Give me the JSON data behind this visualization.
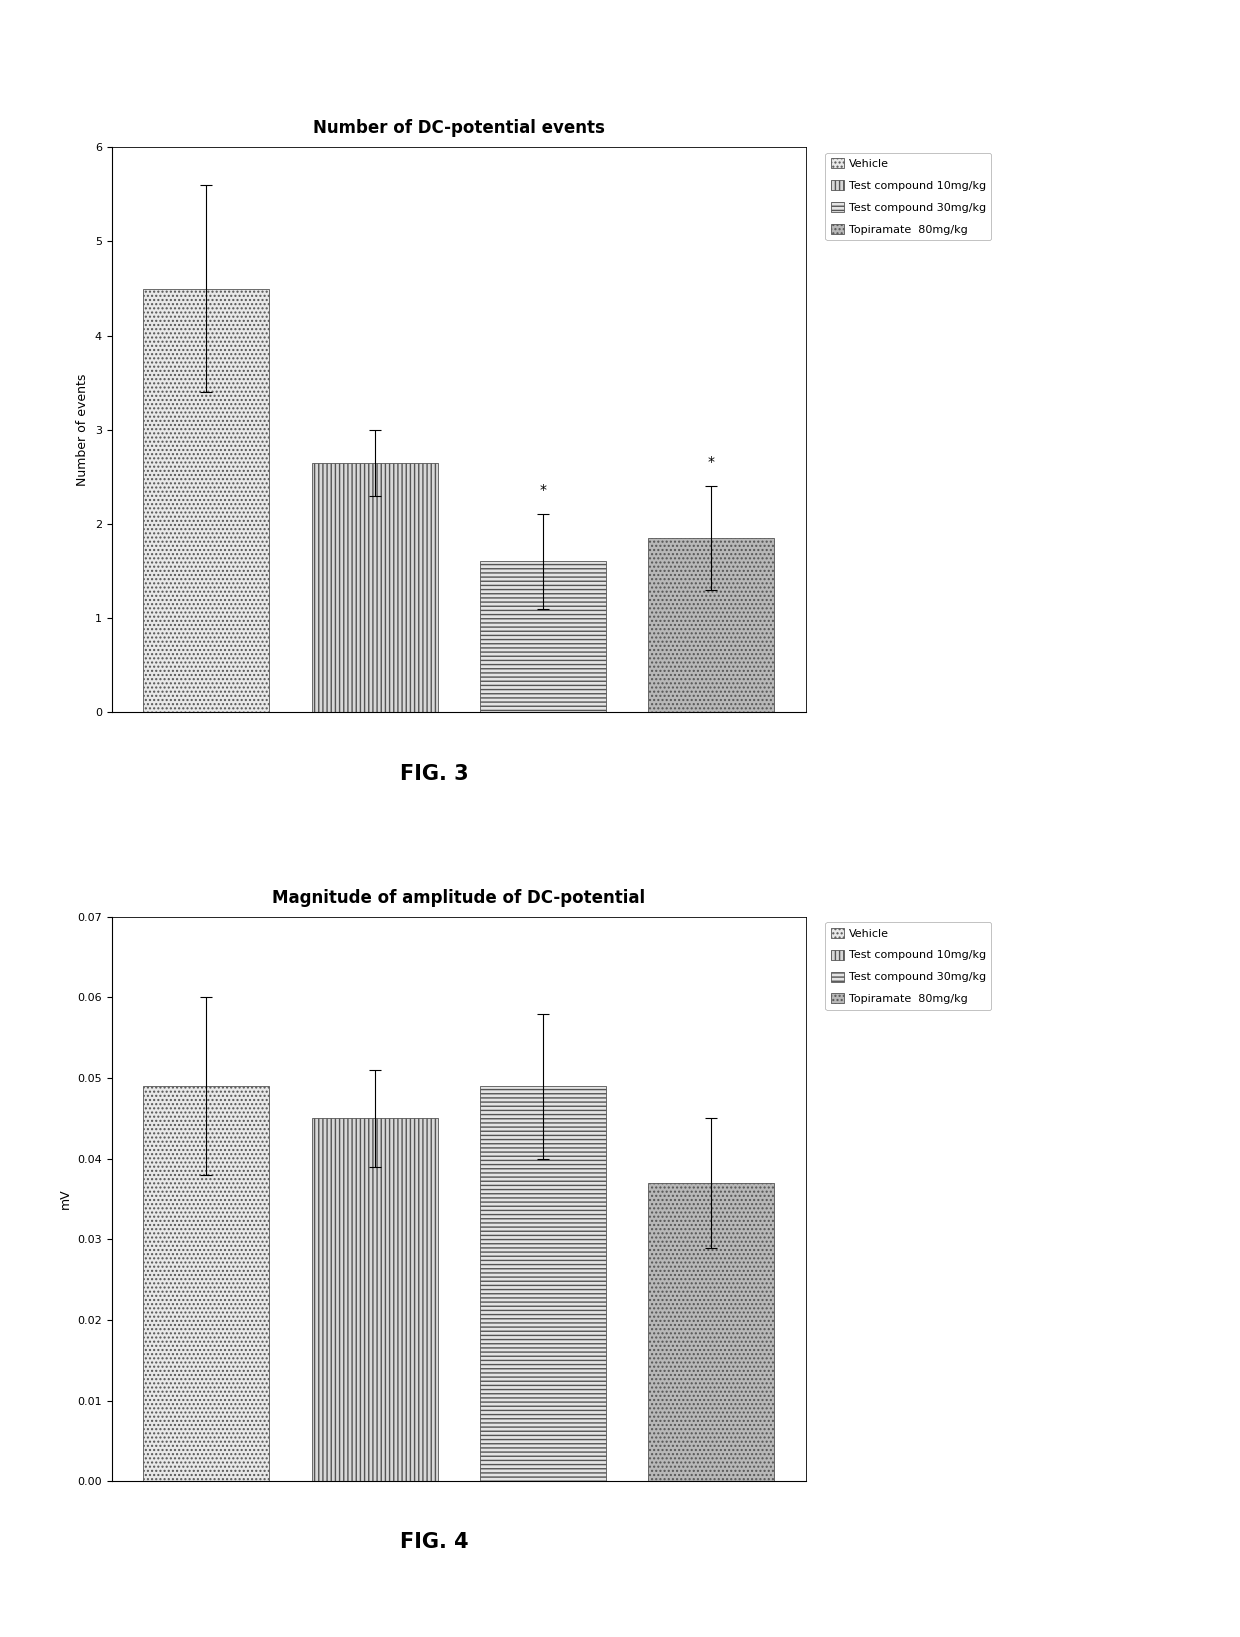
{
  "fig3": {
    "title": "Number of DC-potential events",
    "ylabel": "Number of events",
    "ylim": [
      0,
      6
    ],
    "yticks": [
      0,
      1,
      2,
      3,
      4,
      5,
      6
    ],
    "bar_values": [
      4.5,
      2.65,
      1.6,
      1.85
    ],
    "bar_errors": [
      1.1,
      0.35,
      0.5,
      0.55
    ],
    "bar_colors": [
      "#e8e8e8",
      "#e0e0e0",
      "#d0d0d0",
      "#b0b0b0"
    ],
    "legend_labels": [
      "Vehicle",
      "Test compound 10mg/kg",
      "Test compound 30mg/kg",
      "Topiramate  80mg/kg"
    ],
    "significance": [
      false,
      false,
      true,
      true
    ],
    "fig_label": "FIG. 3"
  },
  "fig4": {
    "title": "Magnitude of amplitude of DC-potential",
    "ylabel": "mV",
    "ylim": [
      0,
      0.07
    ],
    "yticks": [
      0.0,
      0.01,
      0.02,
      0.03,
      0.04,
      0.05,
      0.06,
      0.07
    ],
    "bar_values": [
      0.049,
      0.045,
      0.049,
      0.037
    ],
    "bar_errors": [
      0.011,
      0.006,
      0.009,
      0.008
    ],
    "bar_colors": [
      "#e8e8e8",
      "#e0e0e0",
      "#d0d0d0",
      "#b0b0b0"
    ],
    "legend_labels": [
      "Vehicle",
      "Test compound 10mg/kg",
      "Test compound 30mg/kg",
      "Topiramate  80mg/kg"
    ],
    "significance": [
      false,
      false,
      false,
      false
    ],
    "fig_label": "FIG. 4"
  },
  "background_color": "#ffffff",
  "bar_width": 0.6,
  "bar_positions": [
    0.6,
    1.4,
    2.2,
    3.0
  ],
  "title_fontsize": 12,
  "label_fontsize": 9,
  "legend_fontsize": 8,
  "tick_fontsize": 8
}
